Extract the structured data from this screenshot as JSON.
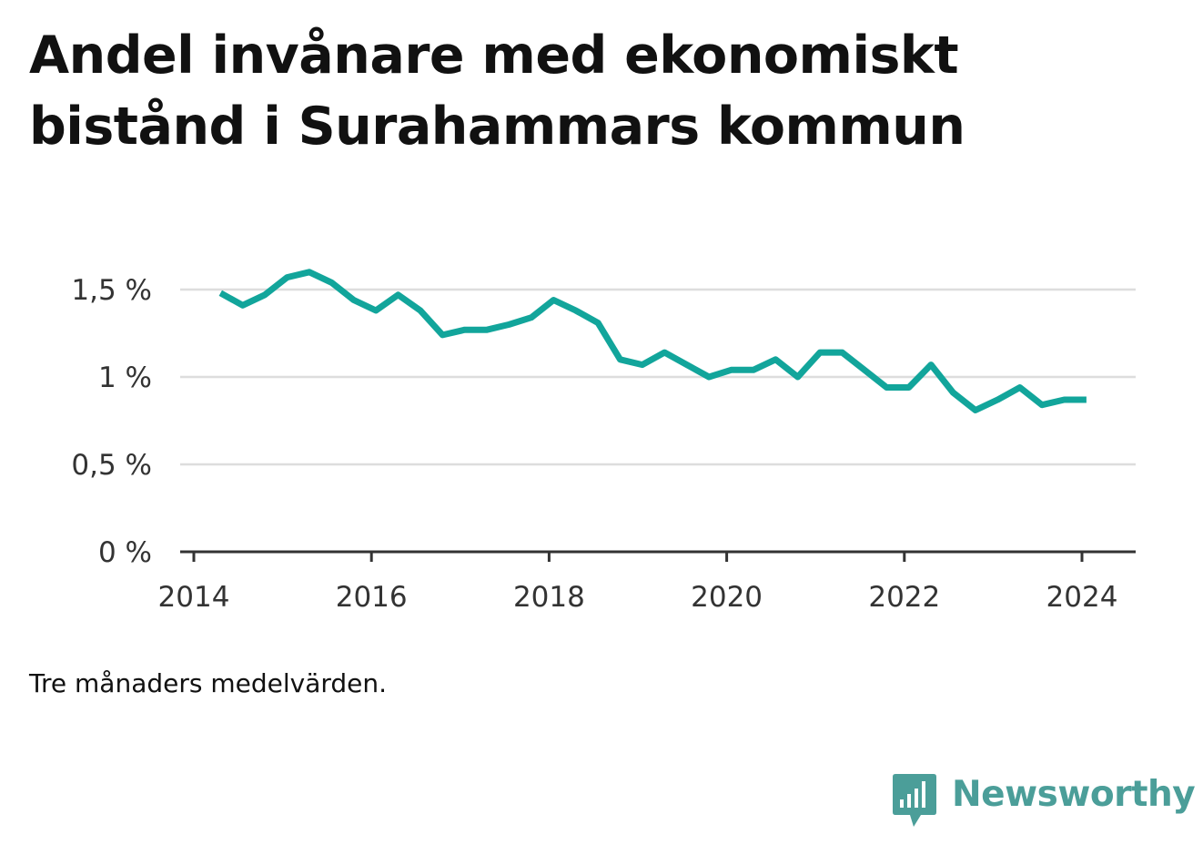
{
  "title": "Andel invånare med ekonomiskt bistånd i Surahammars kommun",
  "note": "Tre månaders medelvärden.",
  "brand": {
    "name": "Newsworthy",
    "logo_icon": "bar-chart-speech-bubble-icon",
    "color": "#4b9e99"
  },
  "colors": {
    "line": "#12a59b",
    "grid": "#dddddd",
    "axis": "#333333"
  },
  "chart_data": {
    "type": "line",
    "title": "Andel invånare med ekonomiskt bistånd i Surahammars kommun",
    "xlabel": "",
    "ylabel": "",
    "xlim": [
      2014,
      2024.6
    ],
    "ylim": [
      0,
      1.75
    ],
    "grid": true,
    "x_ticks": [
      2014,
      2016,
      2018,
      2020,
      2022,
      2024
    ],
    "x_tick_labels": [
      "2014",
      "2016",
      "2018",
      "2020",
      "2022",
      "2024"
    ],
    "y_ticks": [
      0,
      0.5,
      1,
      1.5
    ],
    "y_tick_labels": [
      "0 %",
      "0,5 %",
      "1 %",
      "1,5 %"
    ],
    "series": [
      {
        "x": [
          2014.3,
          2014.55,
          2014.8,
          2015.05,
          2015.3,
          2015.55,
          2015.8,
          2016.05,
          2016.3,
          2016.55,
          2016.8,
          2017.05,
          2017.3,
          2017.55,
          2017.8,
          2018.05,
          2018.3,
          2018.55,
          2018.8,
          2019.05,
          2019.3,
          2019.55,
          2019.8,
          2020.05,
          2020.3,
          2020.55,
          2020.8,
          2021.05,
          2021.3,
          2021.55,
          2021.8,
          2022.05,
          2022.3,
          2022.55,
          2022.8,
          2023.05,
          2023.3,
          2023.55,
          2023.8,
          2024.05
        ],
        "values": [
          1.48,
          1.41,
          1.47,
          1.57,
          1.6,
          1.54,
          1.44,
          1.38,
          1.47,
          1.38,
          1.24,
          1.27,
          1.27,
          1.3,
          1.34,
          1.44,
          1.38,
          1.31,
          1.1,
          1.07,
          1.14,
          1.07,
          1.0,
          1.04,
          1.04,
          1.1,
          1.0,
          1.14,
          1.14,
          1.04,
          0.94,
          0.94,
          1.07,
          0.91,
          0.81,
          0.87,
          0.94,
          0.84,
          0.87,
          0.87
        ]
      }
    ]
  }
}
